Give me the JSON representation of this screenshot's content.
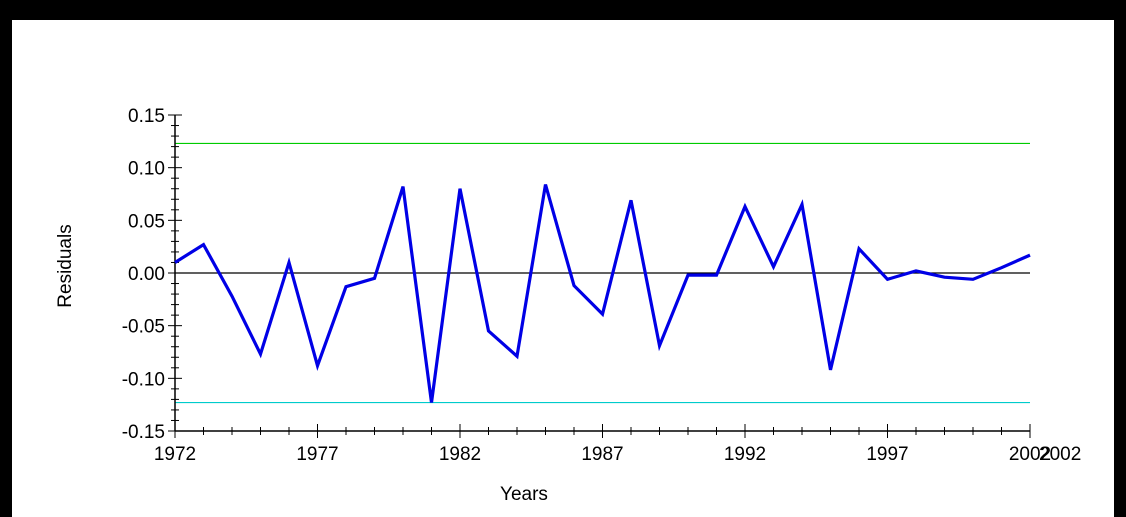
{
  "chart_data": {
    "type": "line",
    "title": "",
    "xlabel": "Years",
    "ylabel": "Residuals",
    "xlim": [
      1972,
      2002
    ],
    "ylim": [
      -0.15,
      0.15
    ],
    "x_major_ticks": [
      1972,
      1977,
      1982,
      1987,
      1992,
      1997,
      2002
    ],
    "x_tick_labels": [
      "1972",
      "1977",
      "1982",
      "1987",
      "1992",
      "1997",
      "2002"
    ],
    "x_extra_label": "2002",
    "y_major_ticks": [
      0.15,
      0.1,
      0.05,
      0.0,
      -0.05,
      -0.1,
      -0.15
    ],
    "y_tick_labels": [
      "0.15",
      "0.10",
      "0.05",
      "0.00",
      "-0.05",
      "-0.10",
      "-0.15"
    ],
    "grid": false,
    "legend": "none",
    "series": [
      {
        "color": "#0000e6",
        "x": [
          1972,
          1973,
          1974,
          1975,
          1976,
          1977,
          1978,
          1979,
          1980,
          1981,
          1982,
          1983,
          1984,
          1985,
          1986,
          1987,
          1988,
          1989,
          1990,
          1991,
          1992,
          1993,
          1994,
          1995,
          1996,
          1997,
          1998,
          1999,
          2000,
          2001,
          2002
        ],
        "values": [
          0.01,
          0.027,
          -0.022,
          -0.077,
          0.01,
          -0.088,
          -0.013,
          -0.005,
          0.082,
          -0.123,
          0.08,
          -0.055,
          -0.079,
          0.084,
          -0.012,
          -0.039,
          0.069,
          -0.069,
          -0.002,
          -0.002,
          0.063,
          0.006,
          0.065,
          -0.092,
          0.023,
          -0.006,
          0.002,
          -0.004,
          -0.006,
          0.005,
          0.017
        ]
      }
    ],
    "reference_lines": [
      {
        "y": 0.123,
        "color": "#00cc00"
      },
      {
        "y": 0.0,
        "color": "#000000"
      },
      {
        "y": -0.123,
        "color": "#00cccc"
      }
    ]
  }
}
